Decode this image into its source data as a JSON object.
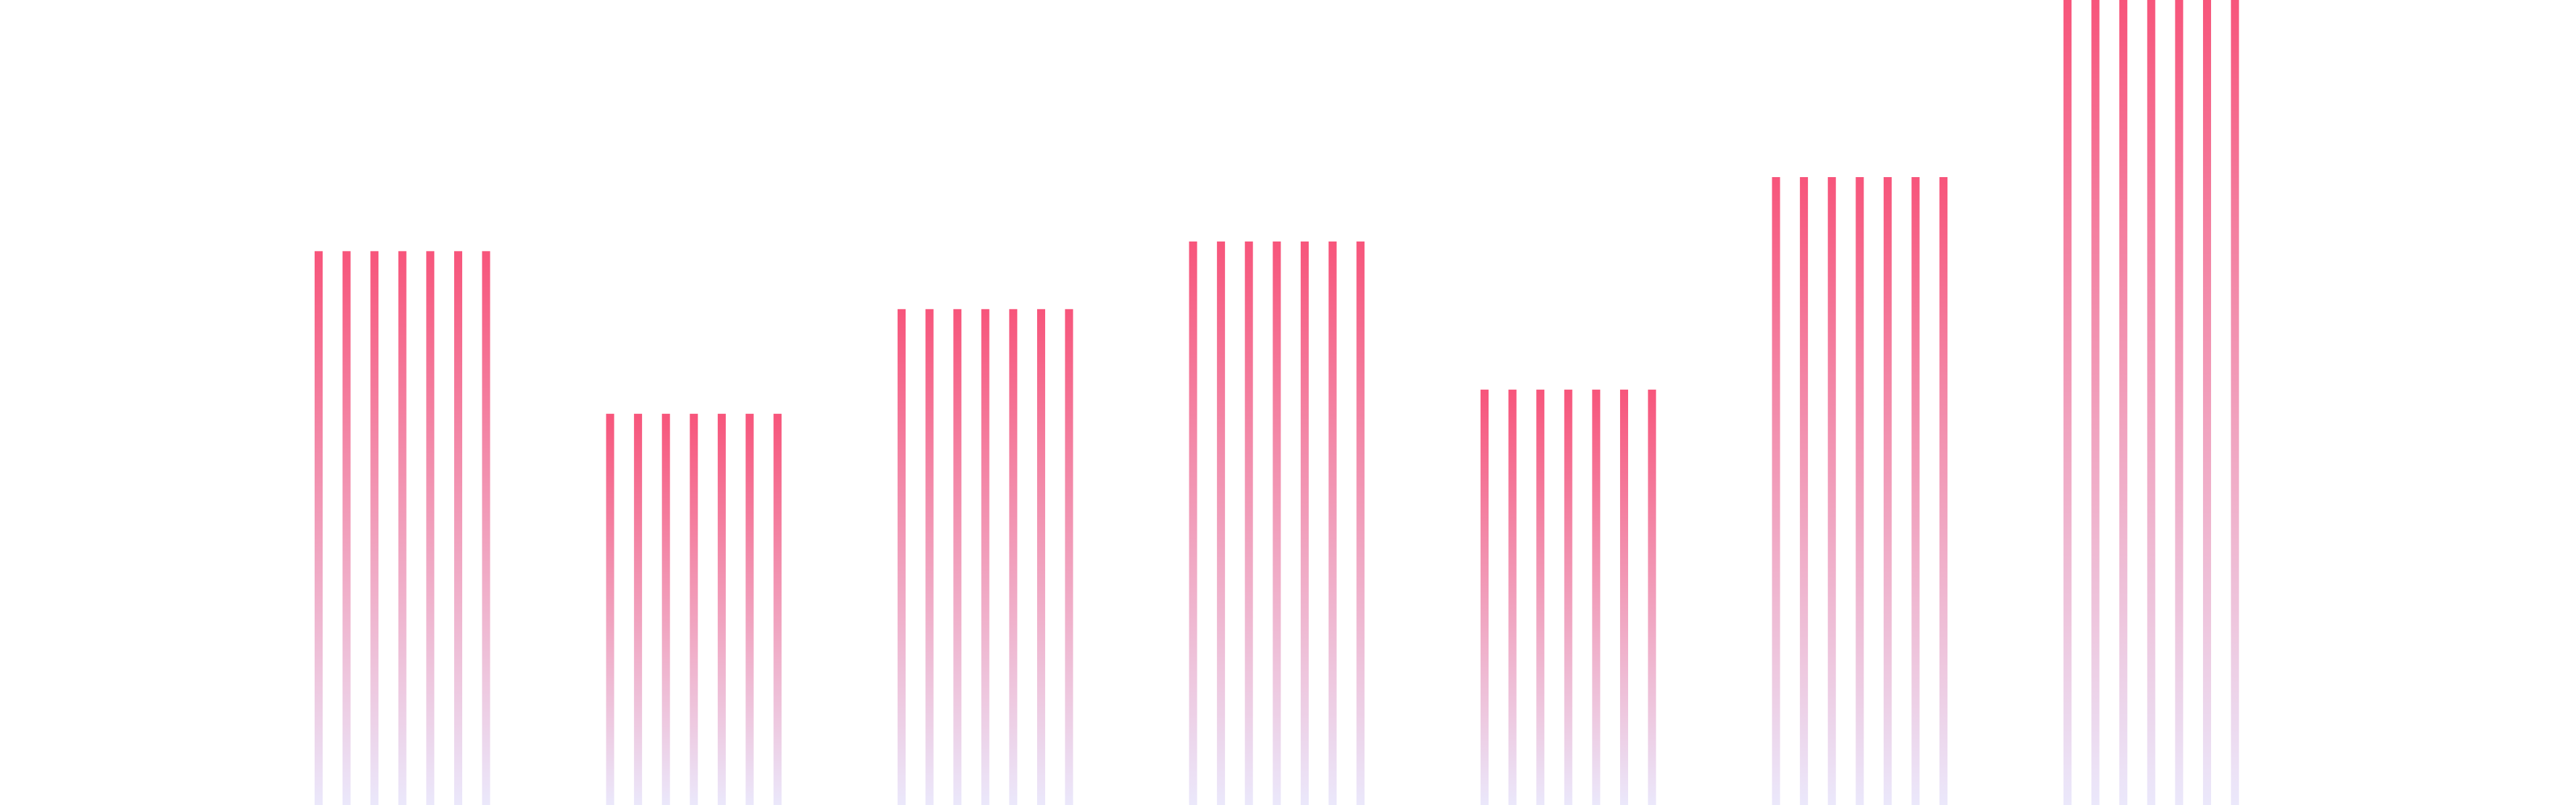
{
  "chart_data": {
    "type": "bar",
    "values": [
      68.8,
      48.6,
      61.6,
      70,
      51.6,
      78,
      100
    ],
    "lines_per_bar": 7,
    "gradient": [
      "#f7557b",
      "#ebe8fb"
    ],
    "ylim": [
      0,
      100
    ]
  }
}
